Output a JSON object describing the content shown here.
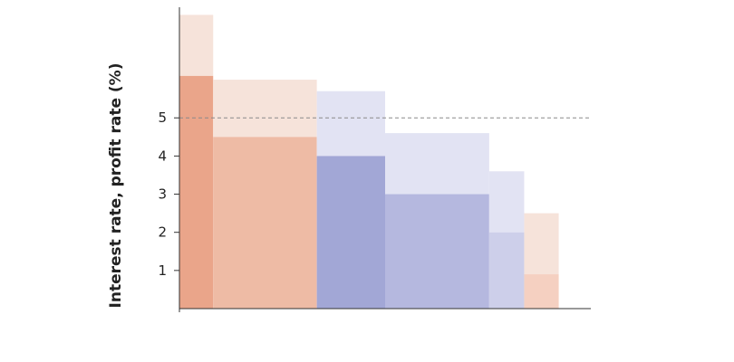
{
  "chart_data": {
    "type": "bar",
    "title": "",
    "xlabel": "",
    "ylabel": "Interest rate, profit rate (%)",
    "yticks": [
      1,
      2,
      3,
      4,
      5
    ],
    "ylim": [
      0,
      7.9
    ],
    "xlim": [
      0,
      100
    ],
    "grid": false,
    "reference_line": {
      "y": 5,
      "style": "dashed"
    },
    "bars": [
      {
        "x_start": 0,
        "x_end": 8.2,
        "lower": 6.1,
        "upper": 7.7,
        "color_lower": "#eaa58a",
        "color_upper": "#f6e3da"
      },
      {
        "x_start": 8.2,
        "x_end": 33.4,
        "lower": 4.5,
        "upper": 6.0,
        "color_lower": "#eebba5",
        "color_upper": "#f6e3da"
      },
      {
        "x_start": 33.4,
        "x_end": 50.0,
        "lower": 4.0,
        "upper": 5.7,
        "color_lower": "#a2a7d6",
        "color_upper": "#e2e3f3"
      },
      {
        "x_start": 50.0,
        "x_end": 75.3,
        "lower": 3.0,
        "upper": 4.6,
        "color_lower": "#b5b8df",
        "color_upper": "#e2e3f3"
      },
      {
        "x_start": 75.3,
        "x_end": 83.8,
        "lower": 2.0,
        "upper": 3.6,
        "color_lower": "#cdcfea",
        "color_upper": "#e2e3f3"
      },
      {
        "x_start": 83.8,
        "x_end": 92.2,
        "lower": 0.9,
        "upper": 2.5,
        "color_lower": "#f5d0c1",
        "color_upper": "#f6e3da"
      }
    ]
  }
}
